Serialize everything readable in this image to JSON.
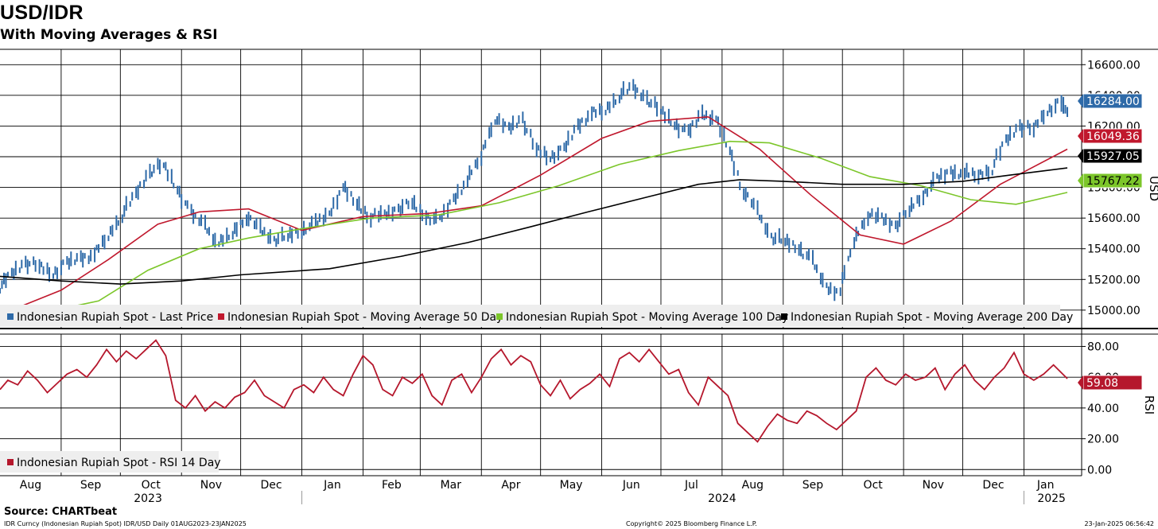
{
  "title": "USD/IDR",
  "subtitle": "With Moving Averages & RSI",
  "footer": {
    "source": "Source: CHARTbeat",
    "left": "IDR Curncy (Indonesian Rupiah Spot) IDR/USD  Daily 01AUG2023-23JAN2025",
    "center": "Copyright© 2025 Bloomberg Finance L.P.",
    "right": "23-Jan-2025 06:56:42"
  },
  "colors": {
    "last": "#2e6aa8",
    "ma50": "#c0182d",
    "ma100": "#7cc62a",
    "ma200": "#000000",
    "rsi": "#b5172c"
  },
  "chart_data": [
    {
      "type": "line",
      "subtype": "candlestick-with-moving-averages",
      "ylabel": "USD",
      "axis_side": "right",
      "ylim": [
        14880,
        16700
      ],
      "yticks": [
        15000,
        15200,
        15400,
        15600,
        15800,
        16000,
        16200,
        16400,
        16600
      ],
      "ytick_labels": [
        "15000.00",
        "15200.00",
        "15400.00",
        "15600.00",
        "15800.00",
        "16000.00",
        "16200.00",
        "16400.00",
        "16600.00"
      ],
      "months": [
        "Aug",
        "Sep",
        "Oct",
        "Nov",
        "Dec",
        "Jan",
        "Feb",
        "Mar",
        "Apr",
        "May",
        "Jun",
        "Jul",
        "Aug",
        "Sep",
        "Oct",
        "Nov",
        "Dec",
        "Jan"
      ],
      "years": [
        "2023",
        "2024",
        "2025"
      ],
      "x_start": "2023-08-01",
      "x_end": "2025-01-23",
      "grid": true,
      "legend_position": "bottom-left",
      "series": [
        {
          "name": "Indonesian Rupiah Spot - Last Price",
          "kind": "bars",
          "last_label": "16284.00",
          "x": [
            "2023-08-01",
            "2023-08-07",
            "2023-08-14",
            "2023-08-21",
            "2023-08-28",
            "2023-09-04",
            "2023-09-11",
            "2023-09-18",
            "2023-09-25",
            "2023-10-02",
            "2023-10-09",
            "2023-10-16",
            "2023-10-23",
            "2023-10-30",
            "2023-11-06",
            "2023-11-13",
            "2023-11-20",
            "2023-11-27",
            "2023-12-04",
            "2023-12-11",
            "2023-12-18",
            "2023-12-25",
            "2024-01-01",
            "2024-01-08",
            "2024-01-15",
            "2024-01-22",
            "2024-01-29",
            "2024-02-05",
            "2024-02-12",
            "2024-02-19",
            "2024-02-26",
            "2024-03-04",
            "2024-03-11",
            "2024-03-18",
            "2024-03-25",
            "2024-04-01",
            "2024-04-08",
            "2024-04-15",
            "2024-04-22",
            "2024-04-29",
            "2024-05-06",
            "2024-05-13",
            "2024-05-20",
            "2024-05-27",
            "2024-06-03",
            "2024-06-10",
            "2024-06-17",
            "2024-06-24",
            "2024-07-01",
            "2024-07-08",
            "2024-07-15",
            "2024-07-22",
            "2024-07-29",
            "2024-08-05",
            "2024-08-12",
            "2024-08-19",
            "2024-08-26",
            "2024-09-02",
            "2024-09-09",
            "2024-09-16",
            "2024-09-23",
            "2024-09-30",
            "2024-10-07",
            "2024-10-14",
            "2024-10-21",
            "2024-10-28",
            "2024-11-04",
            "2024-11-11",
            "2024-11-18",
            "2024-11-25",
            "2024-12-02",
            "2024-12-09",
            "2024-12-16",
            "2024-12-23",
            "2024-12-30",
            "2025-01-06",
            "2025-01-13",
            "2025-01-20",
            "2025-01-23"
          ],
          "values": [
            15150,
            15230,
            15310,
            15290,
            15240,
            15300,
            15340,
            15360,
            15480,
            15620,
            15750,
            15900,
            15950,
            15800,
            15630,
            15560,
            15430,
            15500,
            15610,
            15530,
            15460,
            15480,
            15520,
            15560,
            15620,
            15800,
            15700,
            15610,
            15620,
            15660,
            15700,
            15620,
            15580,
            15720,
            15840,
            16000,
            16250,
            16180,
            16250,
            16050,
            16000,
            16040,
            16200,
            16280,
            16300,
            16400,
            16450,
            16380,
            16300,
            16220,
            16150,
            16280,
            16250,
            16050,
            15780,
            15650,
            15480,
            15450,
            15410,
            15320,
            15150,
            15120,
            15450,
            15620,
            15600,
            15550,
            15650,
            15750,
            15850,
            15900,
            15890,
            15880,
            15920,
            16100,
            16200,
            16180,
            16300,
            16350,
            16284
          ]
        },
        {
          "name": "Indonesian Rupiah Spot - Moving Average 50 Day",
          "last_label": "16049.36",
          "x": [
            "2023-08-01",
            "2023-09-01",
            "2023-09-25",
            "2023-10-20",
            "2023-11-10",
            "2023-12-05",
            "2024-01-01",
            "2024-02-01",
            "2024-03-05",
            "2024-04-01",
            "2024-05-01",
            "2024-06-01",
            "2024-06-25",
            "2024-07-25",
            "2024-08-20",
            "2024-09-15",
            "2024-10-10",
            "2024-11-01",
            "2024-11-25",
            "2024-12-20",
            "2025-01-23"
          ],
          "values": [
            14970,
            15130,
            15330,
            15560,
            15640,
            15660,
            15520,
            15610,
            15630,
            15680,
            15880,
            16120,
            16230,
            16260,
            16050,
            15750,
            15490,
            15430,
            15580,
            15820,
            16049
          ]
        },
        {
          "name": "Indonesian Rupiah Spot - Moving Average 100 Day",
          "last_label": "15767.22",
          "x": [
            "2023-08-01",
            "2023-08-25",
            "2023-09-20",
            "2023-10-15",
            "2023-11-10",
            "2023-12-05",
            "2024-01-01",
            "2024-02-05",
            "2024-03-10",
            "2024-04-10",
            "2024-05-10",
            "2024-06-10",
            "2024-07-10",
            "2024-08-05",
            "2024-08-25",
            "2024-09-20",
            "2024-10-15",
            "2024-11-10",
            "2024-12-05",
            "2024-12-28",
            "2025-01-23"
          ],
          "values": [
            14990,
            14990,
            15060,
            15260,
            15400,
            15470,
            15530,
            15600,
            15620,
            15700,
            15810,
            15950,
            16040,
            16100,
            16090,
            15990,
            15870,
            15810,
            15720,
            15690,
            15767
          ]
        },
        {
          "name": "Indonesian Rupiah Spot - Moving Average 200 Day",
          "last_label": "15927.05",
          "x": [
            "2023-08-01",
            "2023-09-01",
            "2023-10-01",
            "2023-11-01",
            "2023-12-01",
            "2024-01-15",
            "2024-02-20",
            "2024-03-25",
            "2024-04-25",
            "2024-05-25",
            "2024-06-25",
            "2024-07-20",
            "2024-08-10",
            "2024-09-01",
            "2024-10-01",
            "2024-11-01",
            "2024-12-01",
            "2024-12-25",
            "2025-01-23"
          ],
          "values": [
            15220,
            15190,
            15170,
            15190,
            15230,
            15270,
            15350,
            15440,
            15540,
            15640,
            15740,
            15820,
            15850,
            15840,
            15820,
            15820,
            15840,
            15880,
            15927
          ]
        }
      ]
    },
    {
      "type": "line",
      "ylabel": "RSI",
      "axis_side": "right",
      "ylim": [
        -4,
        88
      ],
      "yticks": [
        0,
        20,
        40,
        60,
        80
      ],
      "ytick_labels": [
        "0.00",
        "20.00",
        "40.00",
        "60.00",
        "80.00"
      ],
      "grid": true,
      "legend_position": "bottom-left",
      "series": [
        {
          "name": "Indonesian Rupiah Spot - RSI 14 Day",
          "last_label": "59.08",
          "x": [
            "2023-08-01",
            "2023-08-05",
            "2023-08-10",
            "2023-08-15",
            "2023-08-20",
            "2023-08-25",
            "2023-08-30",
            "2023-09-04",
            "2023-09-09",
            "2023-09-14",
            "2023-09-19",
            "2023-09-24",
            "2023-09-29",
            "2023-10-04",
            "2023-10-09",
            "2023-10-14",
            "2023-10-19",
            "2023-10-24",
            "2023-10-29",
            "2023-11-03",
            "2023-11-08",
            "2023-11-13",
            "2023-11-18",
            "2023-11-23",
            "2023-11-28",
            "2023-12-03",
            "2023-12-08",
            "2023-12-13",
            "2023-12-18",
            "2023-12-23",
            "2023-12-28",
            "2024-01-02",
            "2024-01-07",
            "2024-01-12",
            "2024-01-17",
            "2024-01-22",
            "2024-01-27",
            "2024-02-01",
            "2024-02-06",
            "2024-02-11",
            "2024-02-16",
            "2024-02-21",
            "2024-02-26",
            "2024-03-02",
            "2024-03-07",
            "2024-03-12",
            "2024-03-17",
            "2024-03-22",
            "2024-03-27",
            "2024-04-01",
            "2024-04-06",
            "2024-04-11",
            "2024-04-16",
            "2024-04-21",
            "2024-04-26",
            "2024-05-01",
            "2024-05-06",
            "2024-05-11",
            "2024-05-16",
            "2024-05-21",
            "2024-05-26",
            "2024-05-31",
            "2024-06-05",
            "2024-06-10",
            "2024-06-15",
            "2024-06-20",
            "2024-06-25",
            "2024-06-30",
            "2024-07-05",
            "2024-07-10",
            "2024-07-15",
            "2024-07-20",
            "2024-07-25",
            "2024-07-30",
            "2024-08-04",
            "2024-08-09",
            "2024-08-14",
            "2024-08-19",
            "2024-08-24",
            "2024-08-29",
            "2024-09-03",
            "2024-09-08",
            "2024-09-13",
            "2024-09-18",
            "2024-09-23",
            "2024-09-28",
            "2024-10-03",
            "2024-10-08",
            "2024-10-13",
            "2024-10-18",
            "2024-10-23",
            "2024-10-28",
            "2024-11-02",
            "2024-11-07",
            "2024-11-12",
            "2024-11-17",
            "2024-11-22",
            "2024-11-27",
            "2024-12-02",
            "2024-12-07",
            "2024-12-12",
            "2024-12-17",
            "2024-12-22",
            "2024-12-27",
            "2025-01-01",
            "2025-01-06",
            "2025-01-11",
            "2025-01-16",
            "2025-01-23"
          ],
          "values": [
            52,
            58,
            55,
            64,
            58,
            50,
            56,
            62,
            65,
            60,
            68,
            78,
            70,
            77,
            72,
            78,
            84,
            74,
            45,
            40,
            48,
            38,
            44,
            40,
            47,
            50,
            58,
            48,
            44,
            40,
            52,
            55,
            50,
            60,
            52,
            48,
            62,
            74,
            68,
            52,
            48,
            60,
            56,
            62,
            48,
            42,
            58,
            62,
            50,
            60,
            72,
            78,
            68,
            74,
            70,
            55,
            48,
            58,
            46,
            52,
            56,
            62,
            54,
            72,
            76,
            70,
            78,
            70,
            62,
            65,
            50,
            42,
            60,
            54,
            48,
            30,
            24,
            18,
            28,
            36,
            32,
            30,
            38,
            35,
            30,
            26,
            32,
            38,
            60,
            66,
            58,
            55,
            62,
            58,
            60,
            66,
            52,
            62,
            68,
            58,
            52,
            60,
            66,
            76,
            62,
            58,
            62,
            68,
            59.08
          ]
        }
      ]
    }
  ]
}
